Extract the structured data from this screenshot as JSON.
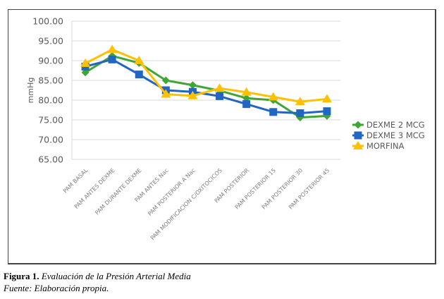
{
  "chart_data": {
    "type": "line",
    "title": "",
    "xlabel": "",
    "ylabel": "mmHg",
    "ylim": [
      65,
      100
    ],
    "y_ticks": [
      "100.00",
      "95.00",
      "90.00",
      "85.00",
      "80.00",
      "75.00",
      "70.00",
      "65.00"
    ],
    "y_tick_values": [
      100,
      95,
      90,
      85,
      80,
      75,
      70,
      65
    ],
    "grid": true,
    "legend_position": "right",
    "categories": [
      "PAM BASAL",
      "PAM ANTES DEXME",
      "PAM DURANTE DEXME",
      "PAM ANTES Nac",
      "PAM POSTERIOR A Nac",
      "PAM MODIFICACION C/OXITOCICOS",
      "PAM POSTERIOR",
      "PAM POSTERIOR 15",
      "PAM POSTERIOR 30",
      "PAM POSTERIOR 45"
    ],
    "series": [
      {
        "name": "DEXME 2 MCG",
        "color": "#3fa535",
        "marker": "diamond",
        "values": [
          87.0,
          91.2,
          89.4,
          85.0,
          83.8,
          82.4,
          80.5,
          80.0,
          75.6,
          76.0
        ]
      },
      {
        "name": "DEXME 3 MCG",
        "color": "#2166c0",
        "marker": "square",
        "values": [
          88.5,
          90.3,
          86.5,
          82.5,
          82.1,
          81.0,
          79.0,
          77.0,
          76.7,
          77.2
        ]
      },
      {
        "name": "MORFINA",
        "color": "#ffc000",
        "marker": "triangle",
        "values": [
          89.3,
          92.8,
          90.0,
          81.5,
          81.1,
          83.0,
          82.0,
          80.8,
          79.6,
          80.3
        ]
      }
    ]
  },
  "caption": {
    "label": "Figura 1.",
    "title": "Evaluación de la Presión Arterial Media",
    "source": "Fuente: Elaboración propia."
  }
}
